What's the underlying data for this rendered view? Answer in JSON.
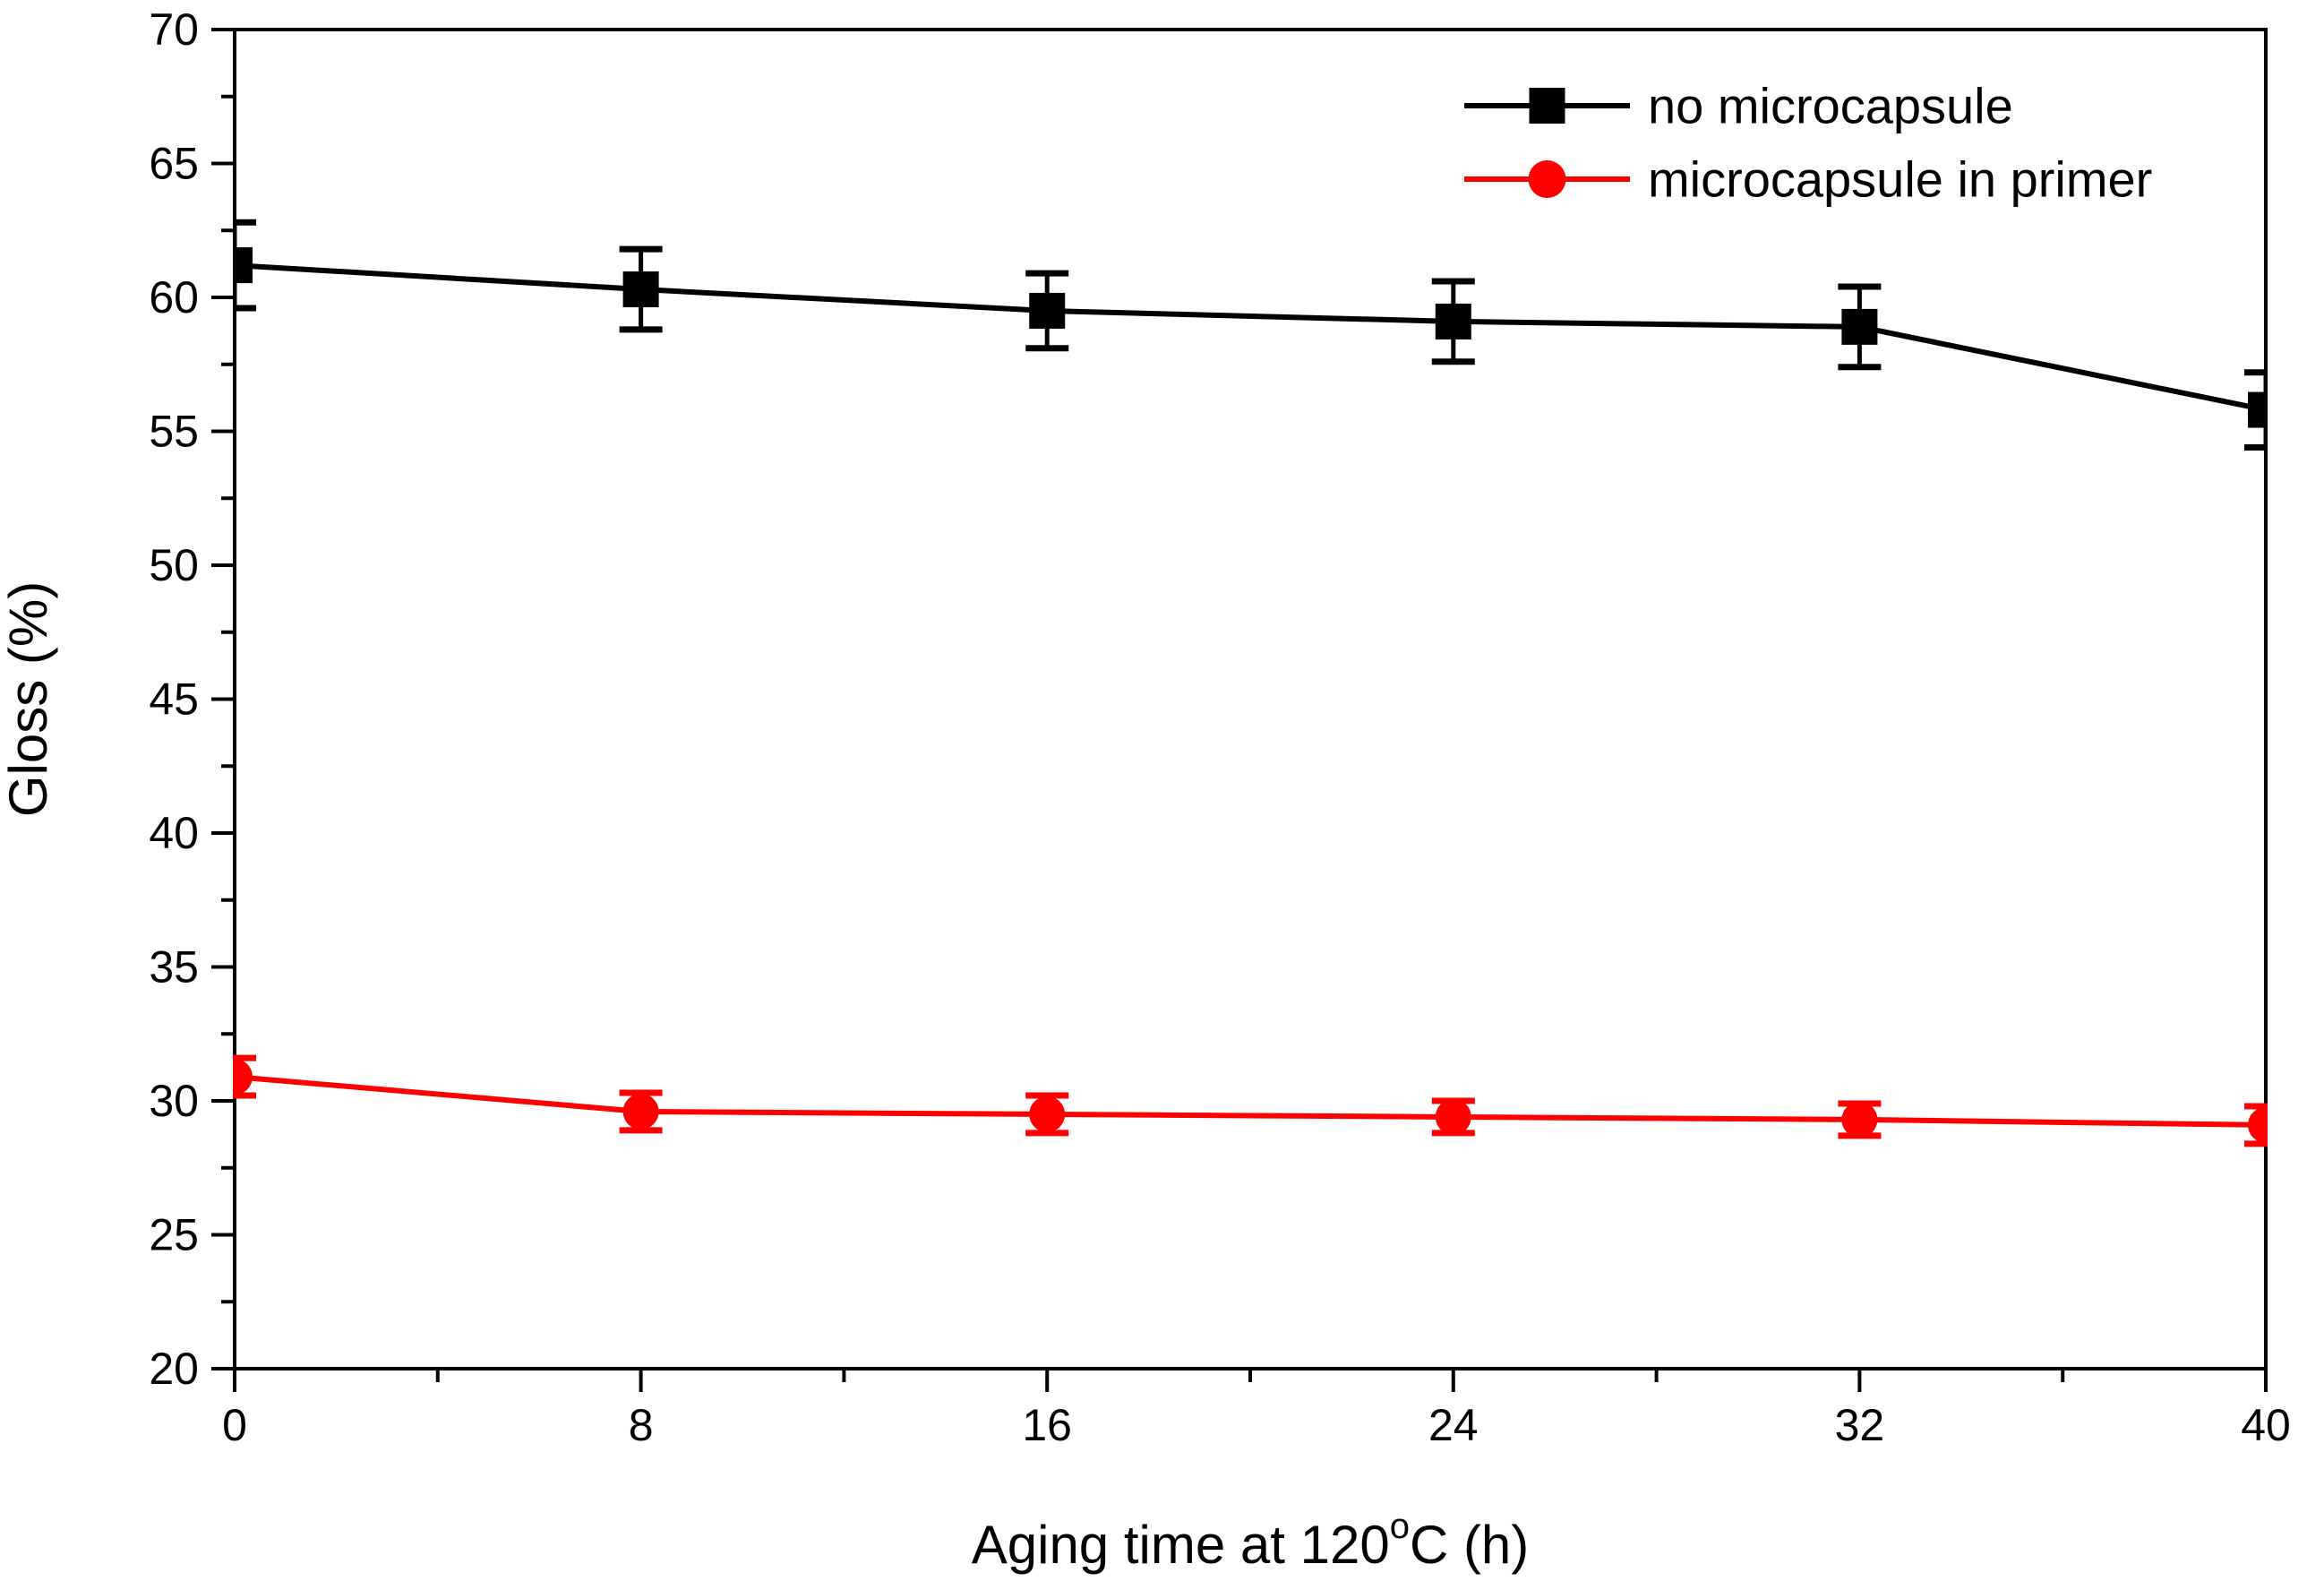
{
  "chart_data": {
    "type": "line",
    "title": "",
    "xlabel_prefix": "Aging time at 120",
    "xlabel_sup": "o",
    "xlabel_suffix": "C (h)",
    "ylabel": "Gloss (%)",
    "xlim": [
      0,
      40
    ],
    "ylim": [
      20,
      70
    ],
    "x_ticks": [
      0,
      8,
      16,
      24,
      32,
      40
    ],
    "x_minor_step": 4,
    "y_ticks": [
      20,
      25,
      30,
      35,
      40,
      45,
      50,
      55,
      60,
      65,
      70
    ],
    "y_minor_step": 2.5,
    "grid": false,
    "legend_position": "top-right-inside",
    "x": [
      0,
      8,
      16,
      24,
      32,
      40
    ],
    "series": [
      {
        "name": "no microcapsule",
        "color": "#000000",
        "marker": "square",
        "values": [
          61.2,
          60.3,
          59.5,
          59.1,
          58.9,
          55.8
        ],
        "errors": [
          1.6,
          1.5,
          1.4,
          1.5,
          1.5,
          1.4
        ]
      },
      {
        "name": "microcapsule in primer",
        "color": "#ff0000",
        "marker": "circle",
        "values": [
          30.9,
          29.6,
          29.5,
          29.4,
          29.3,
          29.1
        ],
        "errors": [
          0.7,
          0.7,
          0.7,
          0.6,
          0.6,
          0.7
        ]
      }
    ]
  }
}
